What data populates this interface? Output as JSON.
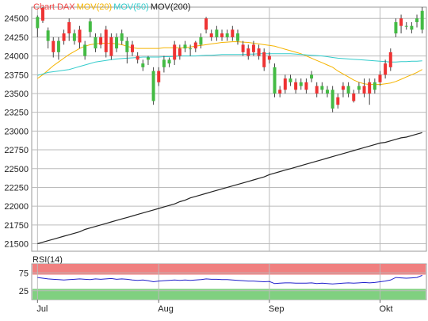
{
  "chart_data": {
    "type": "candlestick",
    "legend": [
      {
        "label": "Chart DAX",
        "color": "#ee4444"
      },
      {
        "label": "MOV(20)",
        "color": "#f5b400"
      },
      {
        "label": "MOV(50)",
        "color": "#33cccc"
      },
      {
        "label": "MOV(200)",
        "color": "#222222"
      }
    ],
    "y_ticks": [
      21500,
      21750,
      22000,
      22250,
      22500,
      22750,
      23000,
      23250,
      23500,
      23750,
      24000,
      24250,
      24500
    ],
    "ylim": [
      21400,
      24650
    ],
    "x_labels": [
      {
        "label": "Jul",
        "index": 0
      },
      {
        "label": "Aug",
        "index": 23
      },
      {
        "label": "Sep",
        "index": 44
      },
      {
        "label": "Okt",
        "index": 65
      }
    ],
    "candles": [
      [
        24370,
        24520,
        24250,
        24540
      ],
      [
        24640,
        24470,
        24440,
        24650
      ],
      [
        24200,
        24340,
        24100,
        24380
      ],
      [
        24200,
        24050,
        23980,
        24250
      ],
      [
        24050,
        24200,
        23950,
        24250
      ],
      [
        24300,
        24200,
        24150,
        24350
      ],
      [
        24450,
        24300,
        24200,
        24500
      ],
      [
        24200,
        24300,
        24150,
        24350
      ],
      [
        24350,
        24180,
        24100,
        24400
      ],
      [
        24000,
        24150,
        23950,
        24200
      ],
      [
        24320,
        24460,
        24250,
        24500
      ],
      [
        24100,
        24250,
        24050,
        24300
      ],
      [
        24250,
        24150,
        24100,
        24300
      ],
      [
        24350,
        24050,
        23980,
        24400
      ],
      [
        24250,
        24000,
        23950,
        24300
      ],
      [
        24100,
        24250,
        24050,
        24300
      ],
      [
        24200,
        24300,
        24150,
        24350
      ],
      [
        24050,
        24200,
        23900,
        24250
      ],
      [
        24150,
        24050,
        24000,
        24200
      ],
      [
        24000,
        23950,
        23900,
        24050
      ],
      [
        23850,
        23900,
        23800,
        23950
      ],
      [
        23950,
        23980,
        23880,
        24000
      ],
      [
        23400,
        23800,
        23350,
        23850
      ],
      [
        23800,
        23650,
        23600,
        23850
      ],
      [
        23850,
        23950,
        23780,
        24000
      ],
      [
        23900,
        23950,
        23850,
        23980
      ],
      [
        24150,
        23950,
        23880,
        24200
      ],
      [
        24100,
        24000,
        23950,
        24150
      ],
      [
        24100,
        24150,
        24050,
        24200
      ],
      [
        24100,
        24100,
        24000,
        24150
      ],
      [
        24180,
        24100,
        24050,
        24200
      ],
      [
        24150,
        24250,
        24100,
        24300
      ],
      [
        24500,
        24350,
        24300,
        24520
      ],
      [
        24300,
        24250,
        24200,
        24350
      ],
      [
        24250,
        24350,
        24200,
        24400
      ],
      [
        24300,
        24250,
        24200,
        24350
      ],
      [
        24250,
        24300,
        24200,
        24350
      ],
      [
        24350,
        24250,
        24200,
        24400
      ],
      [
        24200,
        24300,
        24150,
        24350
      ],
      [
        24150,
        24050,
        24000,
        24200
      ],
      [
        24100,
        24000,
        23950,
        24150
      ],
      [
        24150,
        24050,
        24000,
        24200
      ],
      [
        24100,
        24000,
        23950,
        24150
      ],
      [
        24050,
        23850,
        23800,
        24100
      ],
      [
        24000,
        23950,
        23900,
        24050
      ],
      [
        23500,
        23850,
        23450,
        23900
      ],
      [
        23550,
        23500,
        23450,
        23600
      ],
      [
        23700,
        23550,
        23500,
        23750
      ],
      [
        23650,
        23700,
        23600,
        23750
      ],
      [
        23650,
        23550,
        23500,
        23700
      ],
      [
        23600,
        23650,
        23550,
        23700
      ],
      [
        23650,
        23550,
        23500,
        23700
      ],
      [
        23700,
        23750,
        23650,
        23800
      ],
      [
        23600,
        23500,
        23450,
        23650
      ],
      [
        23550,
        23600,
        23500,
        23650
      ],
      [
        23500,
        23550,
        23450,
        23600
      ],
      [
        23300,
        23550,
        23250,
        23600
      ],
      [
        23450,
        23350,
        23300,
        23500
      ],
      [
        23600,
        23550,
        23450,
        23650
      ],
      [
        23500,
        23600,
        23450,
        23650
      ],
      [
        23500,
        23400,
        23380,
        23550
      ],
      [
        23550,
        23600,
        23500,
        23650
      ],
      [
        23600,
        23500,
        23450,
        23700
      ],
      [
        23650,
        23500,
        23350,
        23700
      ],
      [
        23550,
        23650,
        23500,
        23700
      ],
      [
        23750,
        23650,
        23600,
        23800
      ],
      [
        23900,
        23750,
        23700,
        23950
      ],
      [
        24050,
        23850,
        23800,
        24100
      ],
      [
        24300,
        24450,
        24250,
        24500
      ],
      [
        24500,
        24400,
        24300,
        24550
      ],
      [
        24400,
        24400,
        24350,
        24450
      ],
      [
        24350,
        24400,
        24300,
        24450
      ],
      [
        24450,
        24500,
        24380,
        24550
      ],
      [
        24350,
        24600,
        24300,
        24650
      ]
    ],
    "series": [
      {
        "name": "MOV(20)",
        "color": "#f5b400",
        "values": [
          23700,
          23750,
          23810,
          23870,
          23920,
          23970,
          24020,
          24060,
          24100,
          24130,
          24150,
          24160,
          24170,
          24170,
          24170,
          24160,
          24150,
          24130,
          24110,
          24100,
          24100,
          24100,
          24100,
          24100,
          24110,
          24110,
          24110,
          24110,
          24110,
          24120,
          24130,
          24140,
          24150,
          24160,
          24170,
          24180,
          24185,
          24190,
          24190,
          24185,
          24180,
          24170,
          24160,
          24150,
          24140,
          24130,
          24110,
          24090,
          24070,
          24050,
          24030,
          24000,
          23970,
          23940,
          23910,
          23880,
          23850,
          23800,
          23760,
          23720,
          23680,
          23650,
          23630,
          23620,
          23620,
          23620,
          23630,
          23640,
          23660,
          23690,
          23720,
          23750,
          23780,
          23820
        ]
      },
      {
        "name": "MOV(50)",
        "color": "#33cccc",
        "values": [
          23740,
          23760,
          23780,
          23790,
          23800,
          23810,
          23820,
          23840,
          23860,
          23880,
          23900,
          23920,
          23930,
          23940,
          23950,
          23960,
          23965,
          23970,
          23975,
          23980,
          23985,
          23985,
          23985,
          23985,
          23990,
          23990,
          23995,
          24000,
          24000,
          24000,
          24000,
          24005,
          24010,
          24010,
          24015,
          24020,
          24020,
          24020,
          24020,
          24020,
          24025,
          24025,
          24030,
          24030,
          24030,
          24030,
          24030,
          24030,
          24030,
          24025,
          24020,
          24015,
          24010,
          24005,
          24000,
          23990,
          23980,
          23970,
          23965,
          23960,
          23955,
          23950,
          23945,
          23940,
          23935,
          23930,
          23925,
          23920,
          23920,
          23925,
          23925,
          23930,
          23930,
          23935
        ]
      },
      {
        "name": "MOV(200)",
        "color": "#222222",
        "values": [
          21500,
          21520,
          21540,
          21560,
          21580,
          21600,
          21620,
          21640,
          21660,
          21690,
          21710,
          21730,
          21750,
          21770,
          21790,
          21810,
          21830,
          21850,
          21870,
          21890,
          21910,
          21930,
          21950,
          21970,
          21990,
          22010,
          22030,
          22060,
          22080,
          22110,
          22130,
          22150,
          22170,
          22190,
          22210,
          22230,
          22250,
          22270,
          22290,
          22310,
          22330,
          22350,
          22370,
          22390,
          22420,
          22440,
          22460,
          22480,
          22500,
          22520,
          22540,
          22560,
          22580,
          22600,
          22620,
          22640,
          22660,
          22680,
          22700,
          22720,
          22740,
          22760,
          22780,
          22800,
          22820,
          22840,
          22850,
          22870,
          22890,
          22910,
          22920,
          22940,
          22960,
          22980
        ]
      }
    ],
    "rsi": {
      "label": "RSI(14)",
      "y_ticks": [
        25,
        75
      ],
      "upper": 70,
      "lower": 30,
      "ylim": [
        0,
        100
      ],
      "values": [
        62,
        60,
        58,
        57,
        56,
        55,
        56,
        57,
        58,
        57,
        56,
        58,
        57,
        58,
        59,
        57,
        58,
        57,
        55,
        54,
        55,
        53,
        50,
        52,
        53,
        54,
        55,
        54,
        55,
        54,
        55,
        56,
        58,
        57,
        57,
        56,
        56,
        55,
        54,
        53,
        52,
        52,
        51,
        50,
        51,
        45,
        46,
        47,
        47,
        46,
        46,
        46,
        47,
        45,
        46,
        45,
        44,
        45,
        46,
        47,
        46,
        47,
        48,
        47,
        48,
        50,
        52,
        55,
        62,
        61,
        60,
        61,
        62,
        68
      ]
    }
  }
}
